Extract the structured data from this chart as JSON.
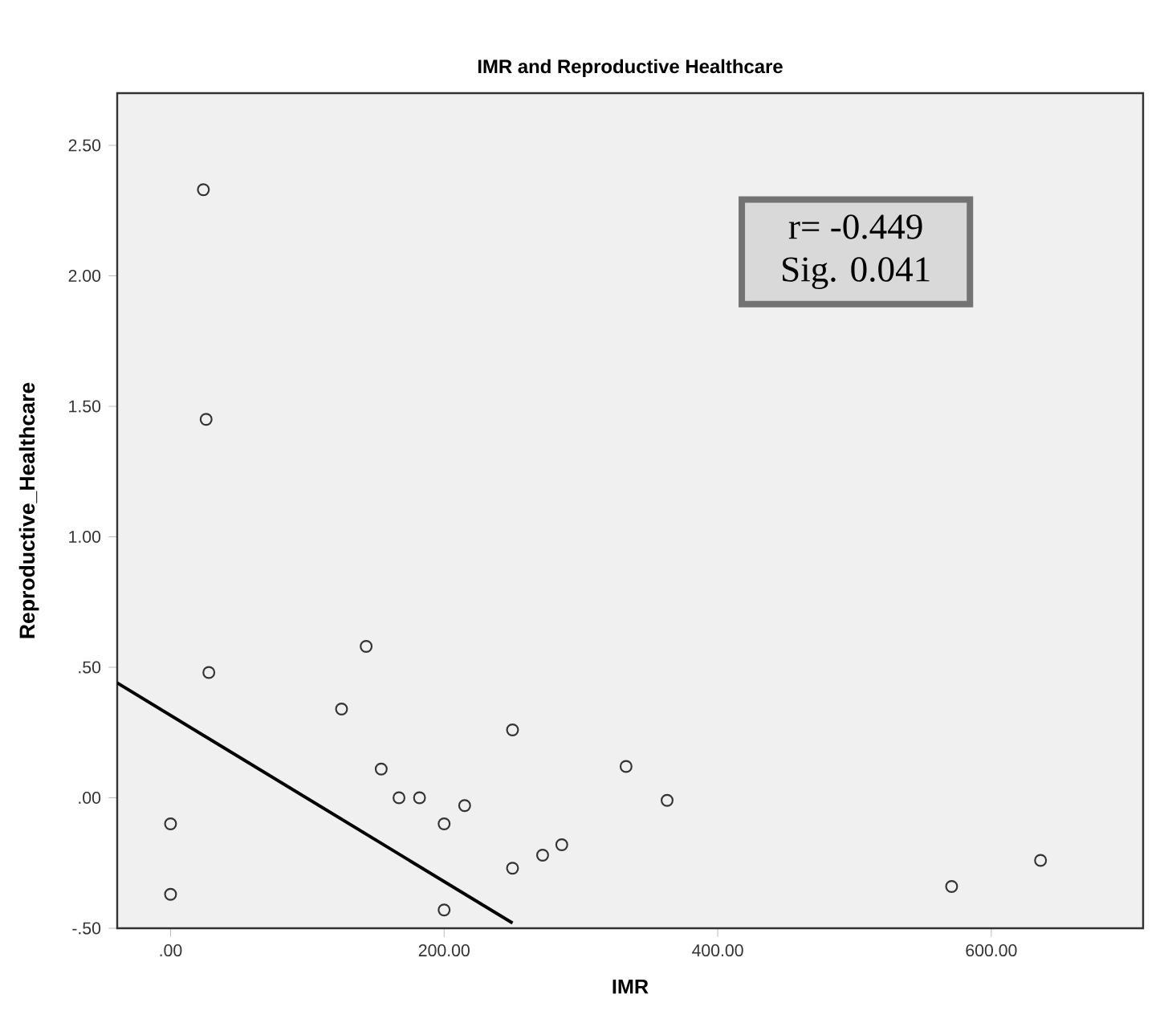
{
  "chart_data": {
    "type": "scatter",
    "title": "IMR and Reproductive Healthcare",
    "xlabel": "IMR",
    "ylabel": "Reproductive_Healthcare",
    "xlim": [
      -39,
      711
    ],
    "ylim": [
      -0.5,
      2.7
    ],
    "xticks": [
      {
        "value": 0,
        "label": ".00"
      },
      {
        "value": 200,
        "label": "200.00"
      },
      {
        "value": 400,
        "label": "400.00"
      },
      {
        "value": 600,
        "label": "600.00"
      }
    ],
    "yticks": [
      {
        "value": -0.5,
        "label": "-.50"
      },
      {
        "value": 0,
        "label": ".00"
      },
      {
        "value": 0.5,
        "label": ".50"
      },
      {
        "value": 1,
        "label": "1.00"
      },
      {
        "value": 1.5,
        "label": "1.50"
      },
      {
        "value": 2,
        "label": "2.00"
      },
      {
        "value": 2.5,
        "label": "2.50"
      }
    ],
    "grid": false,
    "marker": "circle",
    "annotations": [
      "r= -0.449",
      "Sig. 0.041"
    ],
    "series": [
      {
        "color": "#333333",
        "x": [
          24,
          26,
          143,
          28,
          0,
          0,
          125,
          154,
          167,
          182,
          215,
          200,
          250,
          250,
          272,
          286,
          200,
          333,
          363,
          571,
          636
        ],
        "values": [
          2.33,
          1.45,
          0.58,
          0.48,
          -0.1,
          -0.37,
          0.34,
          0.11,
          0.0,
          0.0,
          -0.03,
          -0.1,
          0.26,
          -0.27,
          -0.22,
          -0.18,
          -0.43,
          0.12,
          -0.01,
          -0.34,
          -0.24
        ]
      },
      {
        "type": "line",
        "color": "#000000",
        "marker": "none",
        "line_style": "solid",
        "x": [
          -39,
          250
        ],
        "values": [
          0.44,
          -0.48
        ]
      }
    ]
  }
}
